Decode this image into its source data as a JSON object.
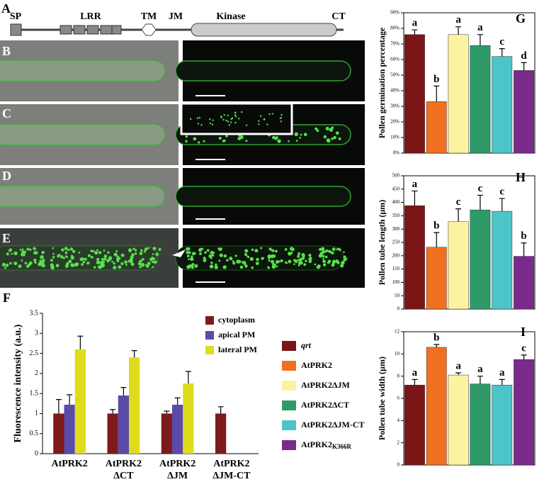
{
  "panel_labels": [
    "A",
    "B",
    "C",
    "D",
    "E",
    "F",
    "G",
    "H",
    "I"
  ],
  "domain_diagram": {
    "labels": [
      "SP",
      "LRR",
      "TM",
      "JM",
      "Kinase",
      "CT"
    ]
  },
  "legend": {
    "items": [
      {
        "name": "qrt",
        "color": "#7b1516",
        "italic": true
      },
      {
        "name": "AtPRK2",
        "color": "#f07020"
      },
      {
        "name": "AtPRK2ΔJM",
        "color": "#fbf3a0"
      },
      {
        "name": "AtPRK2ΔCT",
        "color": "#2e9a6a"
      },
      {
        "name": "AtPRK2ΔJM-CT",
        "color": "#4cc4c8"
      },
      {
        "name": "AtPRK2",
        "subscript": "K366R",
        "color": "#7a2a8a"
      }
    ]
  },
  "chart_data": [
    {
      "type": "grouped-bar",
      "y_label": "Fluorescence intensity (a.u.)",
      "categories": [
        "AtPRK2",
        "AtPRK2\nΔCT",
        "AtPRK2\nΔJM",
        "AtPRK2\nΔJM-CT"
      ],
      "series": [
        {
          "name": "cytoplasm",
          "color": "#7f1a1a",
          "values": [
            1,
            1,
            1,
            1
          ],
          "errors": [
            0.35,
            0.1,
            0.06,
            0.17
          ]
        },
        {
          "name": "apical PM",
          "color": "#5b4aa8",
          "values": [
            1.22,
            1.45,
            1.22,
            null
          ],
          "errors": [
            0.25,
            0.2,
            0.17,
            null
          ]
        },
        {
          "name": "lateral PM",
          "color": "#e0dc1c",
          "values": [
            2.6,
            2.4,
            1.75,
            null
          ],
          "errors": [
            0.33,
            0.17,
            0.3,
            null
          ]
        }
      ],
      "ylim": [
        0,
        3.5
      ],
      "yticks": [
        0,
        0.5,
        1,
        1.5,
        2,
        2.5,
        3,
        3.5
      ],
      "legend": "upper right"
    },
    {
      "type": "bar",
      "y_label": "Pollen germination percentage",
      "values": [
        76,
        33,
        76,
        69,
        62,
        53
      ],
      "errors": [
        3,
        10,
        5,
        7,
        5,
        5
      ],
      "letters": [
        "a",
        "b",
        "a",
        "a",
        "c",
        "d"
      ],
      "ylim": [
        0,
        90
      ],
      "yticks": [
        {
          "value": 0,
          "label": "0%"
        },
        {
          "value": 10,
          "label": "10%"
        },
        {
          "value": 20,
          "label": "20%"
        },
        {
          "value": 30,
          "label": "30%"
        },
        {
          "value": 40,
          "label": "40%"
        },
        {
          "value": 50,
          "label": "50%"
        },
        {
          "value": 60,
          "label": "60%"
        },
        {
          "value": 70,
          "label": "70%"
        },
        {
          "value": 80,
          "label": "80%"
        },
        {
          "value": 90,
          "label": "90%"
        }
      ]
    },
    {
      "type": "bar",
      "y_label": "Pollen tube length (µm)",
      "values": [
        388,
        232,
        328,
        372,
        367,
        198
      ],
      "errors": [
        55,
        55,
        48,
        55,
        48,
        50
      ],
      "letters": [
        "a",
        "b",
        "c",
        "c",
        "c",
        "b"
      ],
      "ylim": [
        0,
        500
      ],
      "yticks": [
        0,
        50,
        100,
        150,
        200,
        250,
        300,
        350,
        400,
        450,
        500
      ]
    },
    {
      "type": "bar",
      "y_label": "Pollen tube width (µm)",
      "values": [
        7.2,
        10.6,
        8.1,
        7.3,
        7.2,
        9.5
      ],
      "errors": [
        0.5,
        0.25,
        0.2,
        0.7,
        0.5,
        0.4
      ],
      "letters": [
        "a",
        "b",
        "a",
        "a",
        "a",
        "c"
      ],
      "ylim": [
        0,
        12
      ],
      "yticks": [
        0,
        2,
        4,
        6,
        8,
        10,
        12
      ]
    }
  ]
}
